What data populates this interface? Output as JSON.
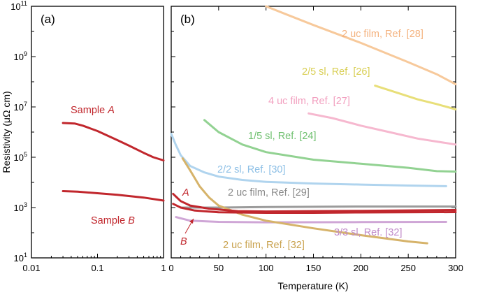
{
  "chart_data": [
    {
      "type": "line",
      "panel_label": "(a)",
      "ylabel": "Resistivity (μΩ cm)",
      "xscale": "log",
      "yscale": "log",
      "xlim": [
        0.01,
        1
      ],
      "ylim": [
        10,
        100000000000
      ],
      "x_ticks": [
        "0.01",
        "0.1",
        "1"
      ],
      "y_tick_labels": [
        {
          "base": "10",
          "exp": "1"
        },
        {
          "base": "10",
          "exp": "3"
        },
        {
          "base": "10",
          "exp": "5"
        },
        {
          "base": "10",
          "exp": "7"
        },
        {
          "base": "10",
          "exp": "9"
        },
        {
          "base": "10",
          "exp": "11"
        }
      ],
      "series": [
        {
          "name_prefix": "Sample ",
          "name_suffix": "A",
          "color": "#c1272d",
          "points": [
            [
              0.03,
              2300000
            ],
            [
              0.045,
              2200000
            ],
            [
              0.06,
              1800000
            ],
            [
              0.1,
              1100000
            ],
            [
              0.2,
              480000
            ],
            [
              0.3,
              290000
            ],
            [
              0.5,
              150000
            ],
            [
              0.7,
              100000
            ],
            [
              1.0,
              75000
            ]
          ]
        },
        {
          "name_prefix": "Sample ",
          "name_suffix": "B",
          "color": "#c1272d",
          "points": [
            [
              0.03,
              4500
            ],
            [
              0.05,
              4300
            ],
            [
              0.1,
              3700
            ],
            [
              0.2,
              3200
            ],
            [
              0.5,
              2500
            ],
            [
              1.0,
              1900
            ]
          ]
        }
      ]
    },
    {
      "type": "line",
      "panel_label": "(b)",
      "xlabel": "Temperature (K)",
      "xscale": "linear",
      "yscale": "log",
      "xlim": [
        0,
        300
      ],
      "ylim": [
        10,
        100000000000
      ],
      "x_ticks": [
        "0",
        "50",
        "100",
        "150",
        "200",
        "250",
        "300"
      ],
      "series": [
        {
          "name": "2 uc film, Ref. [28]",
          "color": "#f7c99b",
          "points": [
            [
              100,
              100000000000
            ],
            [
              120,
              50000000000
            ],
            [
              150,
              18000000000
            ],
            [
              200,
              3500000000
            ],
            [
              250,
              600000000
            ],
            [
              280,
              200000000
            ],
            [
              300,
              80000000
            ]
          ]
        },
        {
          "name": "2/5 sl, Ref. [26]",
          "color": "#e8df79",
          "points": [
            [
              215,
              70000000
            ],
            [
              240,
              35000000
            ],
            [
              260,
              20000000
            ],
            [
              280,
              13000000
            ],
            [
              300,
              8000000
            ]
          ]
        },
        {
          "name": "4 uc film, Ref. [27]",
          "color": "#f6b8cf",
          "points": [
            [
              145,
              5500000
            ],
            [
              170,
              3600000
            ],
            [
              200,
              1800000
            ],
            [
              230,
              1000000
            ],
            [
              260,
              550000
            ],
            [
              300,
              320000
            ]
          ]
        },
        {
          "name": "1/5 sl, Ref. [24]",
          "color": "#92d292",
          "points": [
            [
              35,
              3000000
            ],
            [
              50,
              1000000
            ],
            [
              75,
              320000
            ],
            [
              100,
              160000
            ],
            [
              150,
              80000
            ],
            [
              200,
              55000
            ],
            [
              250,
              38000
            ],
            [
              280,
              28000
            ],
            [
              300,
              27000
            ]
          ]
        },
        {
          "name": "2/2 sl, Ref. [30]",
          "color": "#b0d4ee",
          "points": [
            [
              0,
              850000
            ],
            [
              5,
              300000
            ],
            [
              10,
              120000
            ],
            [
              20,
              45000
            ],
            [
              35,
              25000
            ],
            [
              50,
              17000
            ],
            [
              75,
              12500
            ],
            [
              100,
              10500
            ],
            [
              150,
              9000
            ],
            [
              200,
              8200
            ],
            [
              250,
              7500
            ],
            [
              290,
              7100
            ]
          ]
        },
        {
          "name": "2 uc film, Ref. [29]",
          "color": "#9b9b9b",
          "points": [
            [
              10,
              1000
            ],
            [
              50,
              1000
            ],
            [
              100,
              1050
            ],
            [
              200,
              1100
            ],
            [
              300,
              1100
            ]
          ]
        },
        {
          "name": "3/3 sl, Ref. [32]",
          "color": "#cfa6d6",
          "points": [
            [
              5,
              420
            ],
            [
              20,
              300
            ],
            [
              50,
              270
            ],
            [
              100,
              260
            ],
            [
              200,
              265
            ],
            [
              290,
              270
            ]
          ]
        },
        {
          "name": "2 uc film, Ref. [32]",
          "color": "#d6b36a",
          "points": [
            [
              12,
              90000
            ],
            [
              20,
              30000
            ],
            [
              30,
              7000
            ],
            [
              40,
              2500
            ],
            [
              50,
              1200
            ],
            [
              75,
              520
            ],
            [
              100,
              300
            ],
            [
              150,
              150
            ],
            [
              200,
              80
            ],
            [
              250,
              45
            ],
            [
              270,
              38
            ]
          ]
        },
        {
          "name": "A",
          "color": "#c1272d",
          "points": [
            [
              2,
              3500
            ],
            [
              10,
              1800
            ],
            [
              20,
              1200
            ],
            [
              40,
              900
            ],
            [
              70,
              720
            ],
            [
              100,
              700
            ],
            [
              150,
              720
            ],
            [
              200,
              740
            ],
            [
              250,
              770
            ],
            [
              300,
              800
            ]
          ]
        },
        {
          "name": "B",
          "color": "#c1272d",
          "points": [
            [
              2,
              1400
            ],
            [
              10,
              1000
            ],
            [
              25,
              760
            ],
            [
              50,
              650
            ],
            [
              100,
              620
            ],
            [
              150,
              620
            ],
            [
              200,
              640
            ],
            [
              300,
              660
            ]
          ]
        }
      ]
    }
  ],
  "labels_b": {
    "film28": "2 uc film, Ref. [28]",
    "sl26": "2/5 sl, Ref. [26]",
    "film27": "4 uc film, Ref. [27]",
    "sl24": "1/5 sl, Ref. [24]",
    "sl30": "2/2 sl, Ref. [30]",
    "film29": "2 uc film, Ref. [29]",
    "sl32": "3/3 sl, Ref. [32]",
    "film32": "2 uc film, Ref. [32]",
    "sampleA": "A",
    "sampleB": "B"
  },
  "colors": {
    "sample": "#c1272d",
    "film28": "#f7c99b",
    "sl26": "#e8df79",
    "film27": "#f6b8cf",
    "sl24": "#92d292",
    "sl30": "#b0d4ee",
    "film29": "#9b9b9b",
    "sl32": "#cfa6d6",
    "film32": "#d6b36a"
  }
}
